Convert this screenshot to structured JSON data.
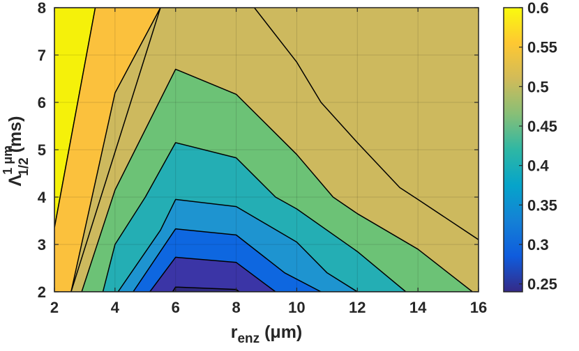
{
  "chart_data": {
    "type": "contour",
    "x": [
      2,
      4,
      6,
      8,
      10,
      12,
      14,
      16
    ],
    "y": [
      2,
      3,
      4,
      5,
      6,
      7,
      8
    ],
    "xlim": [
      2,
      16
    ],
    "ylim": [
      2,
      8
    ],
    "xticks": [
      "2",
      "4",
      "6",
      "8",
      "10",
      "12",
      "14",
      "16"
    ],
    "yticks": [
      "2",
      "3",
      "4",
      "5",
      "6",
      "7",
      "8"
    ],
    "xlabel": {
      "main": "r",
      "sub": "enz",
      "unit": " (μm)"
    },
    "ylabel": {
      "main": "Λ",
      "sup": "1 μm",
      "sub": "1/2",
      "unit": " (ms)"
    },
    "colorbar": {
      "range": [
        0.24,
        0.6
      ],
      "ticks": [
        "0.25",
        "0.3",
        "0.35",
        "0.4",
        "0.45",
        "0.5",
        "0.55",
        "0.6"
      ],
      "colormap": "parula"
    },
    "grid": true,
    "levels": [
      {
        "value": 0.6,
        "color": "#F5F10A",
        "boundary": [
          [
            2,
            8
          ],
          [
            3.35,
            8
          ],
          [
            2,
            3.35
          ]
        ]
      },
      {
        "value": 0.55,
        "color": "#FBC13D",
        "boundary": [
          [
            3.35,
            8
          ],
          [
            5.5,
            8
          ],
          [
            4.0,
            6.2
          ],
          [
            2.55,
            2
          ],
          [
            2,
            2
          ],
          [
            2,
            3.35
          ]
        ]
      },
      {
        "value": 0.5,
        "color": "#CDB95E",
        "boundary": [
          [
            5.5,
            8
          ],
          [
            8.6,
            8
          ],
          [
            10,
            6.85
          ],
          [
            10.8,
            6.0
          ],
          [
            12,
            5.15
          ],
          [
            13.4,
            4.2
          ],
          [
            14,
            3.95
          ],
          [
            16,
            3.1
          ],
          [
            16,
            2
          ],
          [
            2.55,
            2
          ]
        ]
      },
      {
        "value": 0.45,
        "color": "#6CC276",
        "boundary": [
          [
            6,
            6.7
          ],
          [
            8,
            6.17
          ],
          [
            10,
            4.9
          ],
          [
            11.2,
            4.0
          ],
          [
            12,
            3.65
          ],
          [
            14,
            2.9
          ],
          [
            15.8,
            2
          ],
          [
            2.9,
            2
          ],
          [
            4,
            4.15
          ]
        ]
      },
      {
        "value": 0.4,
        "color": "#24AEB4",
        "boundary": [
          [
            6,
            5.15
          ],
          [
            8,
            4.83
          ],
          [
            9.3,
            4.0
          ],
          [
            10,
            3.75
          ],
          [
            12,
            2.85
          ],
          [
            13.6,
            2
          ],
          [
            3.6,
            2
          ],
          [
            4,
            3.0
          ],
          [
            5,
            4.0
          ]
        ]
      },
      {
        "value": 0.35,
        "color": "#1E94D0",
        "boundary": [
          [
            6,
            3.95
          ],
          [
            8,
            3.8
          ],
          [
            10,
            3.05
          ],
          [
            11,
            2.4
          ],
          [
            12,
            2
          ],
          [
            4.1,
            2
          ],
          [
            5.5,
            3.3
          ]
        ]
      },
      {
        "value": 0.3,
        "color": "#0E67E0",
        "boundary": [
          [
            6,
            3.33
          ],
          [
            8,
            3.2
          ],
          [
            9.6,
            2.4
          ],
          [
            10.8,
            2
          ],
          [
            4.6,
            2
          ]
        ]
      },
      {
        "value": 0.25,
        "color": "#3B35A6",
        "boundary": [
          [
            6,
            2.73
          ],
          [
            8,
            2.62
          ],
          [
            9.3,
            2
          ],
          [
            5.15,
            2
          ]
        ]
      },
      {
        "value": 0.24,
        "color": "#2F2A80",
        "boundary": [
          [
            6,
            2.1
          ],
          [
            8,
            2.05
          ],
          [
            8.1,
            2
          ],
          [
            5.9,
            2
          ]
        ]
      }
    ]
  }
}
